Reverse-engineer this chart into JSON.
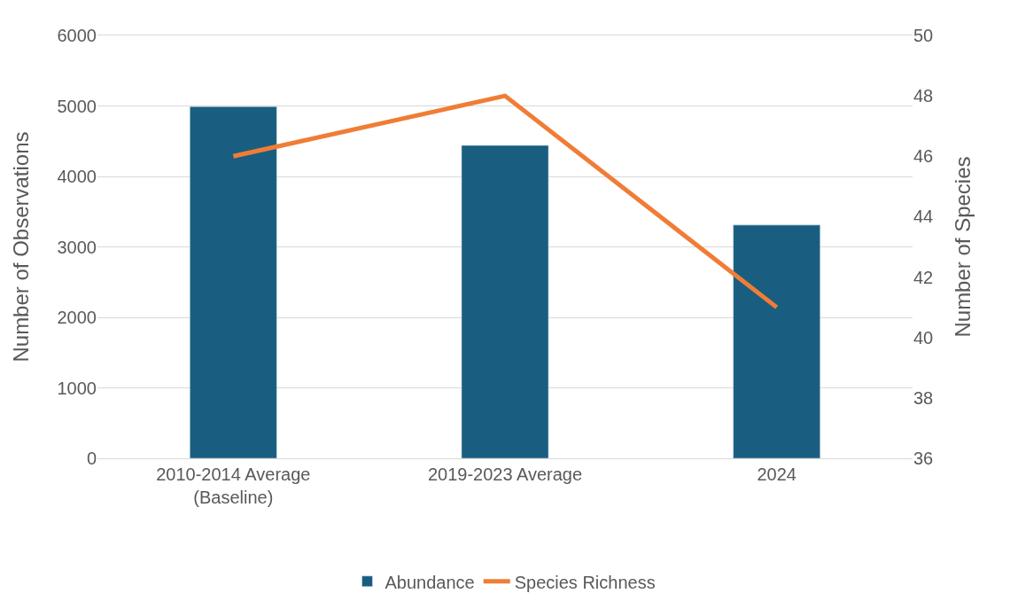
{
  "chart_data": {
    "type": "bar",
    "ylabel": "Number of Observations",
    "y2label": "Number of Species",
    "categories": [
      "2010-2014 Average\n(Baseline)",
      "2019-2023 Average",
      "2024"
    ],
    "series": [
      {
        "name": "Abundance",
        "color": "#195e80",
        "values": [
          4990,
          4440,
          3310
        ]
      },
      {
        "name": "Species Richness",
        "type": "line",
        "axis": "y2",
        "color": "#f07d35",
        "values": [
          46,
          48,
          41
        ]
      }
    ],
    "ylim": [
      0,
      6000
    ],
    "yticks": [
      0,
      1000,
      2000,
      3000,
      4000,
      5000,
      6000
    ],
    "y2lim": [
      36,
      50
    ],
    "y2ticks": [
      36,
      38,
      40,
      42,
      44,
      46,
      48,
      50
    ],
    "grid": "y",
    "legend": "bottom",
    "marker": "none"
  }
}
